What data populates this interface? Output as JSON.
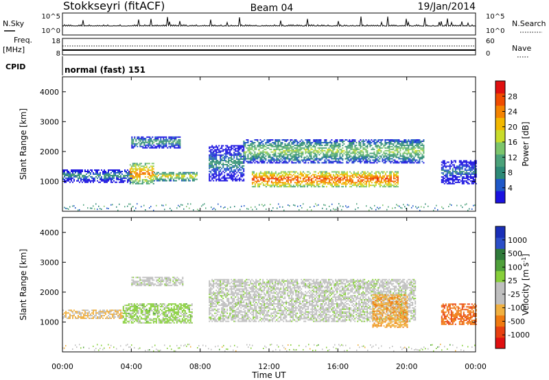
{
  "header": {
    "station": "Stokkseyri (fitACF)",
    "beam": "Beam 04",
    "date": "19/Jan/2014"
  },
  "strip_panels": {
    "nsky_label": "N.Sky",
    "nsky_ticks": [
      "10^5",
      "10^0"
    ],
    "nsearch_label": "N.Search",
    "nsearch_ticks": [
      "10^5",
      "10^0"
    ],
    "freq_label": "Freq.",
    "freq_unit": "[MHz]",
    "freq_ticks": [
      "18",
      "8"
    ],
    "nave_label": "Nave",
    "nave_ticks": [
      "60",
      "0"
    ],
    "cpid_label": "CPID",
    "cpid_text": "normal (fast) 151"
  },
  "range_panels": {
    "ylabel": "Slant Range [km]",
    "y_ticks": [
      "4000",
      "3000",
      "2000",
      "1000"
    ],
    "x_ticks": [
      "00:00",
      "04:00",
      "08:00",
      "12:00",
      "16:00",
      "20:00",
      "00:00"
    ],
    "xlabel": "Time UT"
  },
  "colorbars": {
    "power": {
      "label": "Power [dB]",
      "ticks": [
        "28",
        "24",
        "20",
        "16",
        "12",
        "8",
        "4"
      ],
      "colors": [
        "#1a12e0",
        "#1f58c8",
        "#2d8a77",
        "#4ba27a",
        "#7cc56b",
        "#c9dc2b",
        "#f2b800",
        "#f48300",
        "#f04c00",
        "#e01010"
      ]
    },
    "velocity": {
      "label": "Velocity [m s",
      "label_sup": "-1",
      "label_end": "]",
      "ticks": [
        "1000",
        "500",
        "100",
        "25",
        "-25",
        "-100",
        "-500",
        "-1000"
      ],
      "colors": [
        "#1a2fb8",
        "#2c4fc8",
        "#2f7a3a",
        "#4fa03a",
        "#87cf3a",
        "#bfbfbf",
        "#bfbfbf",
        "#f0b040",
        "#f07a10",
        "#e84010",
        "#e01010"
      ]
    }
  },
  "chart_data": [
    {
      "type": "heatmap",
      "title": "Power",
      "xlabel": "Time UT",
      "ylabel": "Slant Range [km]",
      "xlim": [
        "00:00",
        "24:00"
      ],
      "ylim": [
        0,
        4500
      ],
      "colorbar_label": "Power [dB]",
      "colorbar_range": [
        0,
        32
      ],
      "regions": [
        {
          "t_start": 0.0,
          "t_end": 4.0,
          "r_min": 950,
          "r_max": 1400,
          "power_db": 10
        },
        {
          "t_start": 3.9,
          "t_end": 5.3,
          "r_min": 900,
          "r_max": 1600,
          "power_db": 25
        },
        {
          "t_start": 5.3,
          "t_end": 7.8,
          "r_min": 1000,
          "r_max": 1300,
          "power_db": 20
        },
        {
          "t_start": 4.0,
          "t_end": 6.8,
          "r_min": 2100,
          "r_max": 2500,
          "power_db": 12
        },
        {
          "t_start": 8.5,
          "t_end": 10.5,
          "r_min": 1000,
          "r_max": 2200,
          "power_db": 10
        },
        {
          "t_start": 10.5,
          "t_end": 21.0,
          "r_min": 1600,
          "r_max": 2400,
          "power_db": 16
        },
        {
          "t_start": 11.0,
          "t_end": 19.5,
          "r_min": 800,
          "r_max": 1300,
          "power_db": 28
        },
        {
          "t_start": 22.0,
          "t_end": 24.0,
          "r_min": 900,
          "r_max": 1700,
          "power_db": 8
        }
      ]
    },
    {
      "type": "heatmap",
      "title": "Velocity",
      "xlabel": "Time UT",
      "ylabel": "Slant Range [km]",
      "xlim": [
        "00:00",
        "24:00"
      ],
      "ylim": [
        0,
        4500
      ],
      "colorbar_label": "Velocity [m s-1]",
      "colorbar_range": [
        -1000,
        1000
      ],
      "regions": [
        {
          "t_start": 0.0,
          "t_end": 3.5,
          "r_min": 1100,
          "r_max": 1400,
          "velocity": -300
        },
        {
          "t_start": 3.5,
          "t_end": 7.5,
          "r_min": 950,
          "r_max": 1600,
          "velocity": 150
        },
        {
          "t_start": 4.0,
          "t_end": 7.0,
          "r_min": 2200,
          "r_max": 2500,
          "velocity": 0
        },
        {
          "t_start": 8.5,
          "t_end": 20.5,
          "r_min": 1000,
          "r_max": 2400,
          "velocity": 0
        },
        {
          "t_start": 18.0,
          "t_end": 20.0,
          "r_min": 800,
          "r_max": 1900,
          "velocity": -400
        },
        {
          "t_start": 22.0,
          "t_end": 24.0,
          "r_min": 900,
          "r_max": 1600,
          "velocity": -600
        }
      ]
    }
  ]
}
